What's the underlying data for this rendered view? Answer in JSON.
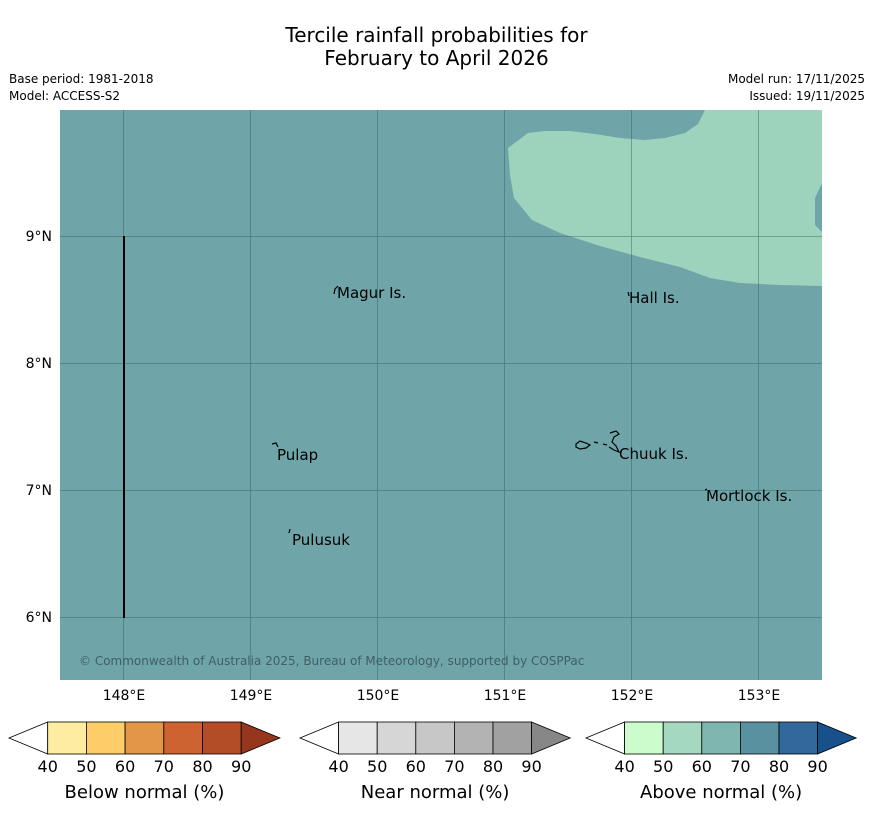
{
  "title": {
    "line1": "Tercile rainfall probabilities for",
    "line2": "February to April 2026"
  },
  "meta": {
    "base_period": "Base period: 1981-2018",
    "model": "Model: ACCESS-S2",
    "model_run": "Model run: 17/11/2025",
    "issued": "Issued: 19/11/2025"
  },
  "map": {
    "background_color": "#6fa5a9",
    "above_high_color": "#9dd3bc",
    "latitudes": [
      "9°N",
      "8°N",
      "7°N",
      "6°N"
    ],
    "longitudes": [
      "148°E",
      "149°E",
      "150°E",
      "151°E",
      "152°E",
      "153°E"
    ],
    "places": [
      "Magur Is.",
      "Hall Is.",
      "Pulap",
      "Chuuk Is.",
      "Mortlock Is.",
      "Pulusuk"
    ],
    "copyright": "© Commonwealth of Australia 2025, Bureau of Meteorology, supported by COSPPac"
  },
  "legends": [
    {
      "label": "Below normal (%)",
      "ticks": [
        "40",
        "50",
        "60",
        "70",
        "80",
        "90"
      ],
      "colors": [
        "#ffffff",
        "#feeda0",
        "#fecd68",
        "#e39548",
        "#cd6331",
        "#b34d28",
        "#96361f"
      ]
    },
    {
      "label": "Near normal (%)",
      "ticks": [
        "40",
        "50",
        "60",
        "70",
        "80",
        "90"
      ],
      "colors": [
        "#ffffff",
        "#e6e6e6",
        "#d6d6d6",
        "#c7c7c7",
        "#b3b3b3",
        "#a1a1a1",
        "#878787"
      ]
    },
    {
      "label": "Above normal (%)",
      "ticks": [
        "40",
        "50",
        "60",
        "70",
        "80",
        "90"
      ],
      "colors": [
        "#ffffff",
        "#ccfccc",
        "#a4d8c0",
        "#7fb6b0",
        "#5a91a1",
        "#33689c",
        "#17508a"
      ]
    }
  ]
}
